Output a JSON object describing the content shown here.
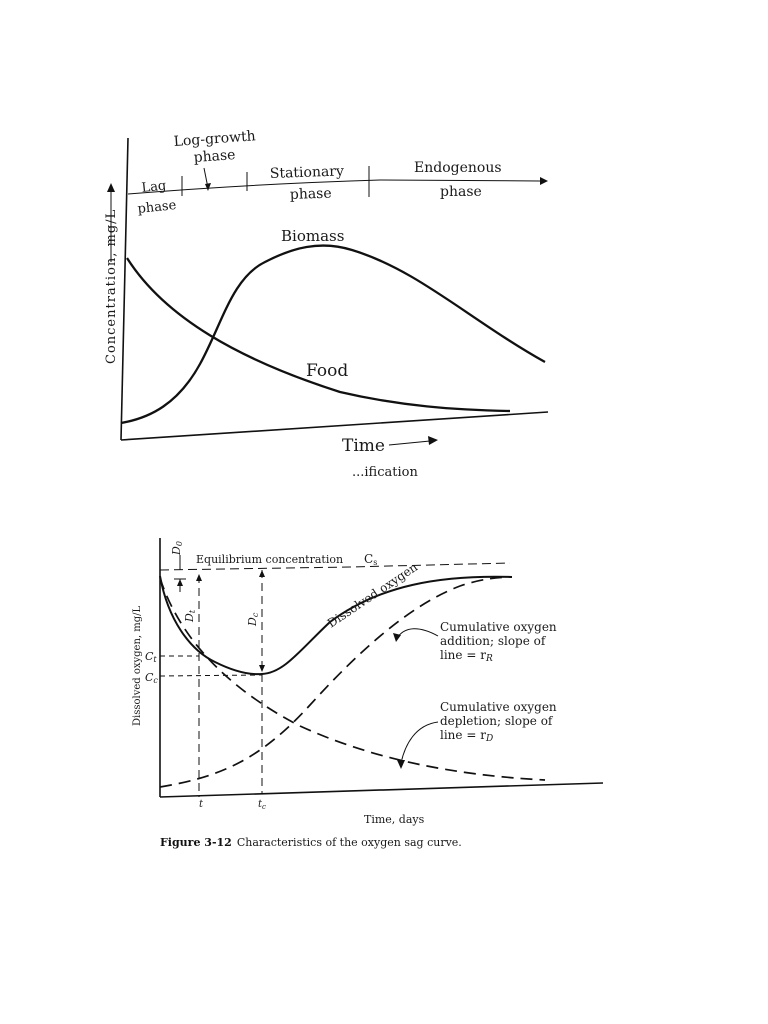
{
  "figure1": {
    "y_axis_label": "Concentration, mg/L",
    "x_axis_label": "Time",
    "phases": {
      "lag": [
        "Lag",
        "phase"
      ],
      "log_growth": [
        "Log-growth",
        "phase"
      ],
      "stationary": [
        "Stationary",
        "phase"
      ],
      "endogenous": [
        "Endogenous",
        "phase"
      ]
    },
    "biomass_label": "Biomass",
    "food_label": "Food",
    "cut_off_text": "...ification"
  },
  "figure2": {
    "y_axis_label": "Dissolved oxygen, mg/L",
    "x_axis_label": "Time, days",
    "equilibrium_label": "Equilibrium concentration",
    "cs_label": "C",
    "cs_sub": "s",
    "d0_label": "D",
    "d0_sub": "0",
    "dt_label": "D",
    "dt_sub": "t",
    "dc_label": "D",
    "dc_sub": "c",
    "ct_label": "C",
    "ct_sub": "t",
    "cc_label": "C",
    "cc_sub": "c",
    "t_tick": "t",
    "tc_tick": "t",
    "tc_sub": "c",
    "do_curve_label": "Dissolved oxygen",
    "addition_label": [
      "Cumulative oxygen",
      "addition; slope of",
      "line = r"
    ],
    "addition_sub": "R",
    "depletion_label": [
      "Cumulative oxygen",
      "depletion; slope of",
      "line = r"
    ],
    "depletion_sub": "D"
  },
  "caption": {
    "number": "Figure 3-12",
    "text": "Characteristics of the oxygen sag curve."
  }
}
